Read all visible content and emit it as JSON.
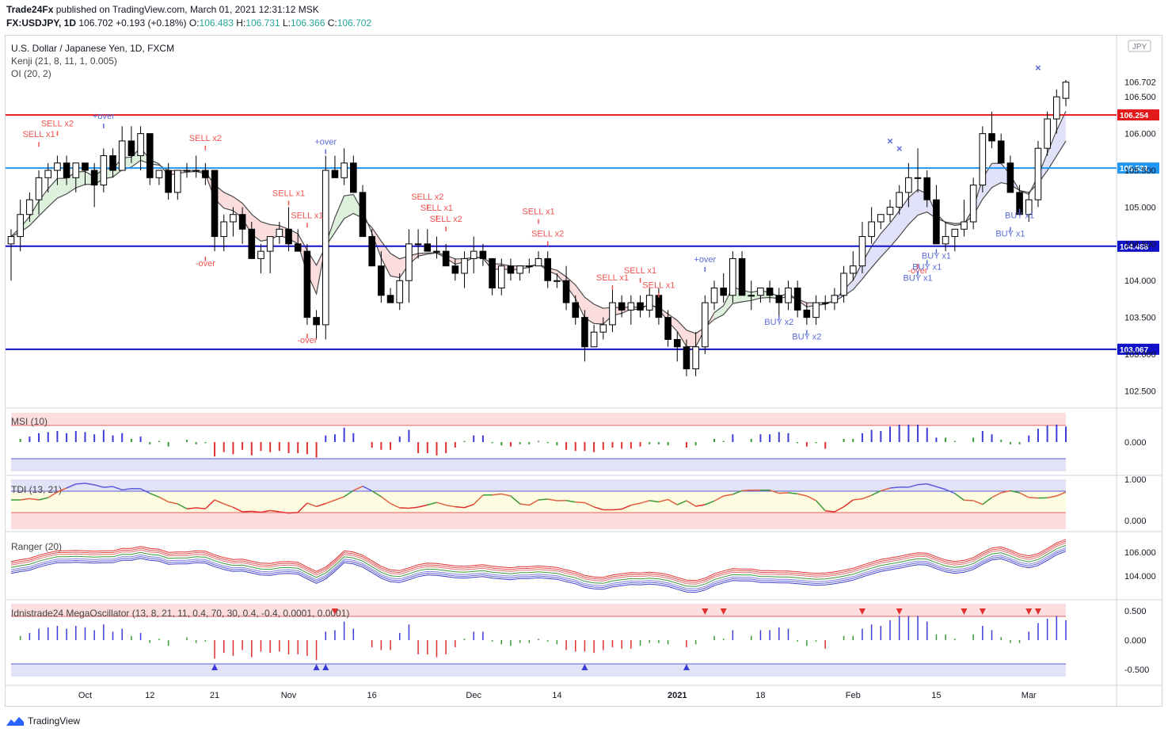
{
  "header": {
    "publisher": "Trade24Fx",
    "published_text": "published on TradingView.com, March 01, 2021 12:31:12 MSK",
    "symbol": "FX:USDJPY, 1D",
    "last": "106.702",
    "change": "+0.193 (+0.18%)",
    "o_label": "O:",
    "o": "106.483",
    "h_label": "H:",
    "h": "106.731",
    "l_label": "L:",
    "l": "106.366",
    "c_label": "C:",
    "c": "106.702"
  },
  "legend": {
    "title": "U.S. Dollar / Japanese Yen, 1D, FXCM",
    "kenji": "Kenji (21, 8, 11, 1, 0.005)",
    "oi": "OI (20, 2)",
    "currency": "JPY"
  },
  "panes": {
    "msi": {
      "label": "MSI (10)",
      "ticks": [
        "0.000"
      ]
    },
    "tdi": {
      "label": "TDI (13, 21)",
      "ticks": [
        "1.000",
        "0.000"
      ]
    },
    "ranger": {
      "label": "Ranger (20)",
      "ticks": [
        "106.000",
        "104.000"
      ]
    },
    "mega": {
      "label": "Idnistrade24 MegaOscillator (13, 8, 21, 11, 0.4, 70, 30, 0.4, -0.4, 0.0001, 0.0001)",
      "ticks": [
        "0.500",
        "0.000",
        "-0.500"
      ]
    }
  },
  "footer": {
    "brand": "TradingView"
  },
  "chart_data": {
    "type": "candlestick",
    "title": "U.S. Dollar / Japanese Yen, 1D, FXCM",
    "price_axis_ticks": [
      "106.500",
      "106.000",
      "105.500",
      "105.000",
      "104.500",
      "104.000",
      "103.500",
      "103.000",
      "102.500"
    ],
    "ylim": [
      102.3,
      107.3
    ],
    "x_ticks": [
      {
        "label": "Oct",
        "i": 8
      },
      {
        "label": "12",
        "i": 15
      },
      {
        "label": "21",
        "i": 22
      },
      {
        "label": "Nov",
        "i": 30
      },
      {
        "label": "16",
        "i": 39
      },
      {
        "label": "Dec",
        "i": 50
      },
      {
        "label": "14",
        "i": 59
      },
      {
        "label": "2021",
        "i": 72,
        "bold": true
      },
      {
        "label": "18",
        "i": 81
      },
      {
        "label": "Feb",
        "i": 91
      },
      {
        "label": "15",
        "i": 100
      },
      {
        "label": "Mar",
        "i": 110
      }
    ],
    "horizontal_levels": [
      {
        "value": 106.254,
        "label": "106.254",
        "color": "#e4191c"
      },
      {
        "value": 105.531,
        "label": "105.531",
        "color": "#2196f3"
      },
      {
        "value": 104.468,
        "label": "104.468",
        "color": "#1010c8"
      },
      {
        "value": 103.067,
        "label": "103.067",
        "color": "#1010c8"
      }
    ],
    "last_price": {
      "value": 106.702,
      "label": "106.702"
    },
    "signals": [
      {
        "text": "SELL x1",
        "i": 3,
        "price": 105.8,
        "pos": "above",
        "color": "#ef5350"
      },
      {
        "text": "SELL x2",
        "i": 5,
        "price": 105.95,
        "pos": "above",
        "color": "#ef5350"
      },
      {
        "text": "+over",
        "i": 10,
        "price": 106.05,
        "pos": "above",
        "color": "#5b6bd6"
      },
      {
        "text": "SELL x2",
        "i": 21,
        "price": 105.75,
        "pos": "above",
        "color": "#ef5350"
      },
      {
        "text": "-over",
        "i": 21,
        "price": 104.35,
        "pos": "below",
        "color": "#ef5350"
      },
      {
        "text": "SELL x1",
        "i": 30,
        "price": 105.0,
        "pos": "above",
        "color": "#ef5350"
      },
      {
        "text": "SELL x1",
        "i": 32,
        "price": 104.7,
        "pos": "above",
        "color": "#ef5350"
      },
      {
        "text": "+over",
        "i": 34,
        "price": 105.7,
        "pos": "above",
        "color": "#5b6bd6"
      },
      {
        "text": "-over",
        "i": 32,
        "price": 103.3,
        "pos": "below",
        "color": "#ef5350"
      },
      {
        "text": "SELL x2",
        "i": 45,
        "price": 104.95,
        "pos": "above",
        "color": "#ef5350"
      },
      {
        "text": "SELL x1",
        "i": 46,
        "price": 104.8,
        "pos": "above",
        "color": "#ef5350"
      },
      {
        "text": "SELL x2",
        "i": 47,
        "price": 104.65,
        "pos": "above",
        "color": "#ef5350"
      },
      {
        "text": "SELL x1",
        "i": 57,
        "price": 104.75,
        "pos": "above",
        "color": "#ef5350"
      },
      {
        "text": "SELL x2",
        "i": 58,
        "price": 104.45,
        "pos": "above",
        "color": "#ef5350"
      },
      {
        "text": "SELL x1",
        "i": 68,
        "price": 103.95,
        "pos": "above",
        "color": "#ef5350"
      },
      {
        "text": "SELL x1",
        "i": 65,
        "price": 103.85,
        "pos": "above",
        "color": "#ef5350"
      },
      {
        "text": "SELL x1",
        "i": 70,
        "price": 103.75,
        "pos": "above",
        "color": "#ef5350"
      },
      {
        "text": "+over",
        "i": 75,
        "price": 104.1,
        "pos": "above",
        "color": "#5b6bd6"
      },
      {
        "text": "BUY x2",
        "i": 83,
        "price": 103.55,
        "pos": "below",
        "color": "#5b6bd6"
      },
      {
        "text": "BUY x2",
        "i": 86,
        "price": 103.35,
        "pos": "below",
        "color": "#5b6bd6"
      },
      {
        "text": "-over",
        "i": 98,
        "price": 104.25,
        "pos": "below",
        "color": "#ef5350"
      },
      {
        "text": "BUY x1",
        "i": 98,
        "price": 104.15,
        "pos": "below",
        "color": "#5b6bd6"
      },
      {
        "text": "BUY x1",
        "i": 99,
        "price": 104.3,
        "pos": "below",
        "color": "#5b6bd6"
      },
      {
        "text": "BUY x1",
        "i": 100,
        "price": 104.45,
        "pos": "below",
        "color": "#5b6bd6"
      },
      {
        "text": "BUY x1",
        "i": 108,
        "price": 104.75,
        "pos": "below",
        "color": "#5b6bd6"
      },
      {
        "text": "BUY x1",
        "i": 109,
        "price": 105.0,
        "pos": "below",
        "color": "#5b6bd6"
      }
    ],
    "cross_markers": [
      {
        "i": 95,
        "price": 105.85
      },
      {
        "i": 96,
        "price": 105.75
      },
      {
        "i": 111,
        "price": 106.85
      }
    ],
    "candles": [
      [
        104.5,
        104.7,
        104.0,
        104.6
      ],
      [
        104.6,
        105.1,
        104.4,
        104.9
      ],
      [
        104.9,
        105.2,
        104.8,
        105.1
      ],
      [
        105.1,
        105.5,
        104.9,
        105.4
      ],
      [
        105.4,
        105.6,
        105.2,
        105.5
      ],
      [
        105.5,
        105.7,
        105.3,
        105.6
      ],
      [
        105.6,
        105.7,
        105.3,
        105.4
      ],
      [
        105.4,
        105.6,
        105.2,
        105.6
      ],
      [
        105.6,
        105.6,
        105.3,
        105.5
      ],
      [
        105.5,
        105.6,
        105.0,
        105.3
      ],
      [
        105.3,
        105.8,
        105.2,
        105.7
      ],
      [
        105.7,
        105.8,
        105.4,
        105.5
      ],
      [
        105.5,
        106.1,
        105.5,
        105.9
      ],
      [
        105.9,
        106.1,
        105.6,
        105.7
      ],
      [
        105.7,
        106.1,
        105.5,
        106.0
      ],
      [
        106.0,
        106.0,
        105.3,
        105.4
      ],
      [
        105.4,
        105.5,
        105.3,
        105.5
      ],
      [
        105.5,
        105.6,
        105.1,
        105.2
      ],
      [
        105.2,
        105.5,
        105.1,
        105.5
      ],
      [
        105.5,
        105.6,
        105.4,
        105.5
      ],
      [
        105.5,
        105.7,
        105.4,
        105.5
      ],
      [
        105.5,
        105.6,
        105.3,
        105.4
      ],
      [
        105.5,
        105.5,
        104.4,
        104.6
      ],
      [
        104.6,
        104.9,
        104.4,
        104.8
      ],
      [
        104.8,
        105.0,
        104.6,
        104.9
      ],
      [
        104.9,
        105.0,
        104.5,
        104.7
      ],
      [
        104.7,
        104.8,
        104.3,
        104.3
      ],
      [
        104.3,
        104.5,
        104.1,
        104.4
      ],
      [
        104.4,
        104.6,
        104.1,
        104.6
      ],
      [
        104.6,
        104.8,
        104.5,
        104.7
      ],
      [
        104.7,
        105.0,
        104.4,
        104.5
      ],
      [
        104.5,
        104.7,
        104.4,
        104.4
      ],
      [
        104.4,
        104.5,
        103.4,
        103.5
      ],
      [
        103.5,
        103.6,
        103.2,
        103.4
      ],
      [
        103.4,
        105.7,
        103.2,
        105.5
      ],
      [
        105.5,
        105.7,
        105.4,
        105.4
      ],
      [
        105.4,
        105.8,
        105.3,
        105.6
      ],
      [
        105.6,
        105.7,
        105.2,
        105.2
      ],
      [
        105.2,
        105.3,
        104.6,
        104.6
      ],
      [
        104.6,
        104.7,
        104.2,
        104.2
      ],
      [
        104.2,
        104.4,
        103.7,
        103.8
      ],
      [
        103.8,
        103.9,
        103.7,
        103.7
      ],
      [
        103.7,
        104.1,
        103.6,
        104.0
      ],
      [
        104.0,
        104.7,
        103.7,
        104.5
      ],
      [
        104.5,
        104.7,
        104.3,
        104.5
      ],
      [
        104.5,
        104.7,
        104.4,
        104.4
      ],
      [
        104.4,
        104.6,
        104.3,
        104.4
      ],
      [
        104.4,
        104.5,
        104.2,
        104.2
      ],
      [
        104.2,
        104.3,
        104.0,
        104.1
      ],
      [
        104.1,
        104.4,
        103.9,
        104.3
      ],
      [
        104.3,
        104.6,
        104.1,
        104.4
      ],
      [
        104.4,
        104.5,
        104.2,
        104.3
      ],
      [
        104.3,
        104.3,
        103.8,
        103.9
      ],
      [
        103.9,
        104.3,
        103.8,
        104.2
      ],
      [
        104.2,
        104.3,
        104.0,
        104.1
      ],
      [
        104.1,
        104.2,
        104.0,
        104.2
      ],
      [
        104.2,
        104.3,
        104.1,
        104.2
      ],
      [
        104.2,
        104.4,
        104.2,
        104.3
      ],
      [
        104.3,
        104.4,
        103.9,
        104.0
      ],
      [
        104.0,
        104.1,
        103.9,
        104.0
      ],
      [
        104.0,
        104.2,
        103.6,
        103.7
      ],
      [
        103.7,
        103.8,
        103.4,
        103.5
      ],
      [
        103.5,
        103.6,
        102.9,
        103.1
      ],
      [
        103.1,
        103.4,
        103.1,
        103.3
      ],
      [
        103.3,
        103.5,
        103.2,
        103.4
      ],
      [
        103.4,
        103.9,
        103.3,
        103.7
      ],
      [
        103.7,
        103.8,
        103.5,
        103.6
      ],
      [
        103.6,
        103.8,
        103.4,
        103.7
      ],
      [
        103.7,
        103.8,
        103.5,
        103.6
      ],
      [
        103.6,
        103.9,
        103.5,
        103.8
      ],
      [
        103.8,
        103.9,
        103.4,
        103.5
      ],
      [
        103.5,
        103.6,
        103.1,
        103.2
      ],
      [
        103.2,
        103.3,
        102.9,
        103.1
      ],
      [
        103.1,
        103.2,
        102.7,
        102.8
      ],
      [
        102.8,
        103.3,
        102.7,
        103.1
      ],
      [
        103.1,
        103.8,
        103.0,
        103.7
      ],
      [
        103.7,
        104.0,
        103.6,
        103.9
      ],
      [
        103.9,
        104.1,
        103.7,
        103.8
      ],
      [
        103.8,
        104.4,
        103.7,
        104.3
      ],
      [
        104.3,
        104.4,
        103.8,
        103.8
      ],
      [
        103.8,
        104.0,
        103.6,
        103.8
      ],
      [
        103.8,
        103.9,
        103.7,
        103.9
      ],
      [
        103.9,
        104.0,
        103.7,
        103.8
      ],
      [
        103.8,
        103.9,
        103.5,
        103.7
      ],
      [
        103.7,
        104.0,
        103.6,
        103.9
      ],
      [
        103.9,
        104.0,
        103.5,
        103.6
      ],
      [
        103.6,
        103.7,
        103.4,
        103.5
      ],
      [
        103.5,
        103.8,
        103.4,
        103.7
      ],
      [
        103.7,
        103.8,
        103.6,
        103.7
      ],
      [
        103.7,
        103.9,
        103.6,
        103.8
      ],
      [
        103.8,
        104.2,
        103.7,
        104.1
      ],
      [
        104.1,
        104.4,
        104.0,
        104.2
      ],
      [
        104.2,
        104.8,
        104.1,
        104.6
      ],
      [
        104.6,
        105.0,
        104.5,
        104.8
      ],
      [
        104.8,
        104.9,
        104.7,
        104.9
      ],
      [
        104.9,
        105.1,
        104.8,
        105.0
      ],
      [
        105.0,
        105.3,
        104.9,
        105.2
      ],
      [
        105.2,
        105.6,
        105.0,
        105.4
      ],
      [
        105.4,
        105.8,
        105.2,
        105.4
      ],
      [
        105.4,
        105.5,
        105.0,
        105.1
      ],
      [
        105.1,
        105.3,
        104.5,
        104.5
      ],
      [
        104.5,
        104.8,
        104.4,
        104.6
      ],
      [
        104.6,
        104.7,
        104.4,
        104.7
      ],
      [
        104.7,
        105.1,
        104.6,
        104.8
      ],
      [
        104.8,
        105.4,
        104.7,
        105.3
      ],
      [
        105.3,
        106.1,
        105.2,
        106.0
      ],
      [
        106.0,
        106.3,
        105.8,
        105.9
      ],
      [
        105.9,
        106.0,
        105.6,
        105.6
      ],
      [
        105.6,
        105.7,
        105.2,
        105.2
      ],
      [
        105.2,
        105.3,
        104.9,
        104.9
      ],
      [
        104.9,
        105.2,
        104.8,
        105.1
      ],
      [
        105.1,
        105.9,
        105.0,
        105.8
      ],
      [
        105.8,
        106.3,
        105.7,
        106.2
      ],
      [
        106.2,
        106.6,
        106.0,
        106.5
      ],
      [
        106.48,
        106.73,
        106.37,
        106.7
      ]
    ]
  }
}
